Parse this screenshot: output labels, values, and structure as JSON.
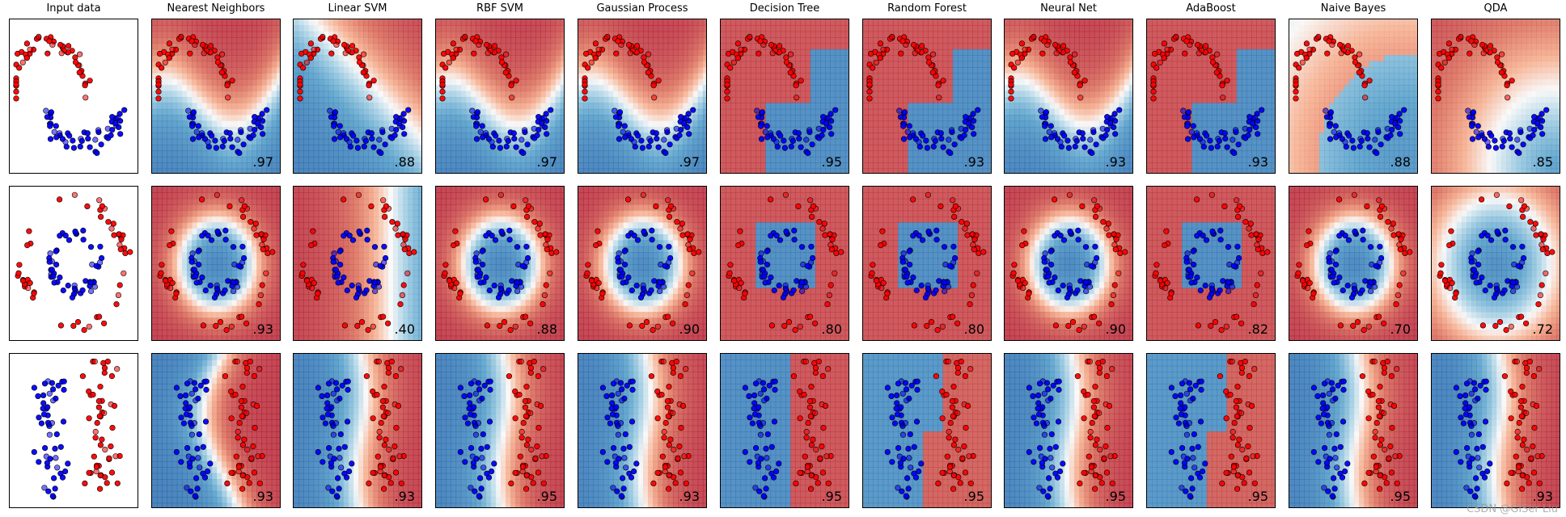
{
  "figure": {
    "watermark": "CSDN @GISer Liu"
  },
  "colors": {
    "red_class": "#ff0000",
    "blue_class": "#0000ff",
    "cm_red_dark": "#b2182b",
    "cm_blue_dark": "#2166ac",
    "cm_mid": "#f7f7f7"
  },
  "columns": [
    "Input data",
    "Nearest Neighbors",
    "Linear SVM",
    "RBF SVM",
    "Gaussian Process",
    "Decision Tree",
    "Random Forest",
    "Neural Net",
    "AdaBoost",
    "Naive Bayes",
    "QDA"
  ],
  "chart_data": {
    "type": "scatter",
    "description_rows": [
      "moons",
      "circles",
      "linearly separable"
    ],
    "scores": [
      [
        "",
        ".97",
        ".88",
        ".97",
        ".97",
        ".95",
        ".93",
        ".93",
        ".93",
        ".88",
        ".85"
      ],
      [
        "",
        ".93",
        ".40",
        ".88",
        ".90",
        ".80",
        ".80",
        ".90",
        ".82",
        ".70",
        ".72"
      ],
      [
        "",
        ".93",
        ".93",
        ".95",
        ".93",
        ".95",
        ".95",
        ".95",
        ".95",
        ".95",
        ".93"
      ]
    ],
    "legend": "none",
    "grid": false
  }
}
